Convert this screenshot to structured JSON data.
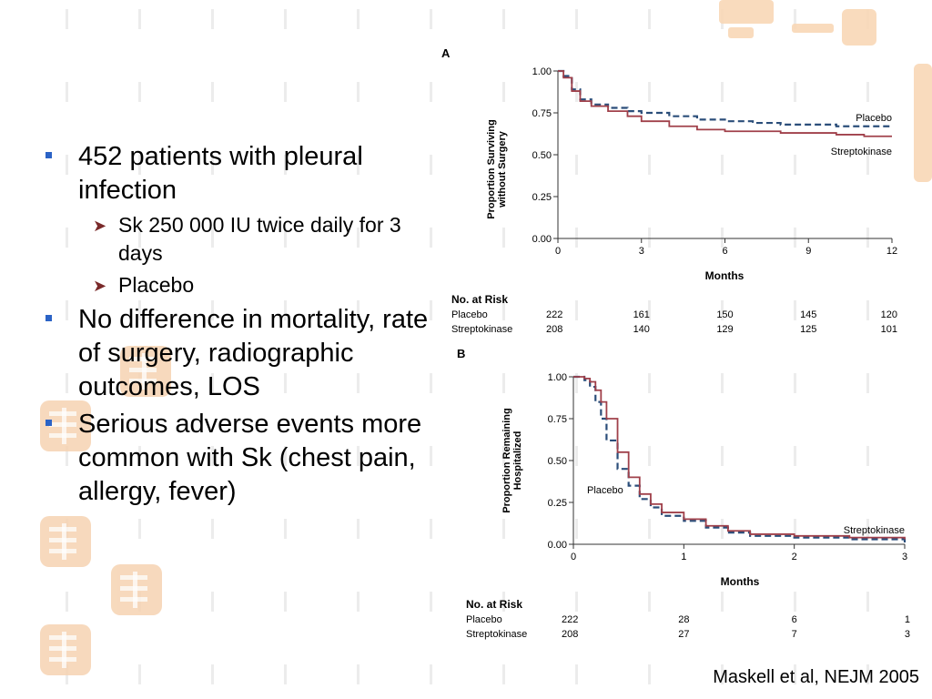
{
  "bullets": {
    "item1": "452 patients with pleural infection",
    "sub1": "Sk 250 000 IU twice daily for 3 days",
    "sub2": "Placebo",
    "item2": "No difference in mortality, rate of surgery, radiographic outcomes, LOS",
    "item3": "Serious adverse events more common with Sk (chest pain, allergy, fever)"
  },
  "citation": "Maskell et al, NEJM 2005",
  "colors": {
    "placebo": "#2b4e7a",
    "streptokinase": "#a0404a",
    "bullet": "#2b63c6",
    "decor": "#f6d3b2"
  },
  "chart_data": [
    {
      "type": "line",
      "panel_label": "A",
      "ylabel": "Proportion Surviving without Surgery",
      "xlabel": "Months",
      "xlim": [
        0,
        12
      ],
      "ylim": [
        0,
        1
      ],
      "xticks": [
        "0",
        "3",
        "6",
        "9",
        "12"
      ],
      "yticks": [
        "0.00",
        "0.25",
        "0.50",
        "0.75",
        "1.00"
      ],
      "series": [
        {
          "name": "Placebo",
          "style": "dashed",
          "x": [
            0,
            0.2,
            0.5,
            0.8,
            1.2,
            1.8,
            2.5,
            3,
            4,
            5,
            6,
            7,
            8,
            9,
            10,
            11,
            12
          ],
          "y": [
            1.0,
            0.97,
            0.89,
            0.83,
            0.8,
            0.78,
            0.76,
            0.75,
            0.73,
            0.71,
            0.7,
            0.69,
            0.68,
            0.68,
            0.67,
            0.67,
            0.67
          ]
        },
        {
          "name": "Streptokinase",
          "style": "solid",
          "x": [
            0,
            0.2,
            0.5,
            0.8,
            1.2,
            1.8,
            2.5,
            3,
            4,
            5,
            6,
            7,
            8,
            9,
            10,
            11,
            12
          ],
          "y": [
            1.0,
            0.96,
            0.88,
            0.82,
            0.79,
            0.76,
            0.73,
            0.7,
            0.67,
            0.65,
            0.64,
            0.64,
            0.63,
            0.63,
            0.62,
            0.61,
            0.61
          ]
        }
      ],
      "at_risk": {
        "header": "No. at Risk",
        "rows": [
          {
            "label": "Placebo",
            "values": [
              "222",
              "161",
              "150",
              "145",
              "120"
            ]
          },
          {
            "label": "Streptokinase",
            "values": [
              "208",
              "140",
              "129",
              "125",
              "101"
            ]
          }
        ]
      }
    },
    {
      "type": "line",
      "panel_label": "B",
      "ylabel": "Proportion Remaining Hospitalized",
      "xlabel": "Months",
      "xlim": [
        0,
        3
      ],
      "ylim": [
        0,
        1
      ],
      "xticks": [
        "0",
        "1",
        "2",
        "3"
      ],
      "yticks": [
        "0.00",
        "0.25",
        "0.50",
        "0.75",
        "1.00"
      ],
      "series": [
        {
          "name": "Placebo",
          "style": "dashed",
          "x": [
            0,
            0.1,
            0.15,
            0.2,
            0.25,
            0.3,
            0.4,
            0.5,
            0.6,
            0.7,
            0.8,
            1.0,
            1.2,
            1.4,
            1.6,
            2.0,
            2.5,
            3.0
          ],
          "y": [
            1.0,
            0.98,
            0.94,
            0.85,
            0.75,
            0.62,
            0.45,
            0.35,
            0.27,
            0.22,
            0.17,
            0.14,
            0.1,
            0.07,
            0.05,
            0.04,
            0.03,
            0.01
          ]
        },
        {
          "name": "Streptokinase",
          "style": "solid",
          "x": [
            0,
            0.1,
            0.15,
            0.2,
            0.25,
            0.3,
            0.4,
            0.5,
            0.6,
            0.7,
            0.8,
            1.0,
            1.2,
            1.4,
            1.6,
            2.0,
            2.5,
            3.0
          ],
          "y": [
            1.0,
            0.99,
            0.97,
            0.92,
            0.85,
            0.75,
            0.55,
            0.4,
            0.3,
            0.24,
            0.19,
            0.15,
            0.11,
            0.08,
            0.06,
            0.05,
            0.04,
            0.03
          ]
        }
      ],
      "at_risk": {
        "header": "No. at Risk",
        "rows": [
          {
            "label": "Placebo",
            "values": [
              "222",
              "28",
              "6",
              "1"
            ]
          },
          {
            "label": "Streptokinase",
            "values": [
              "208",
              "27",
              "7",
              "3"
            ]
          }
        ]
      }
    }
  ]
}
